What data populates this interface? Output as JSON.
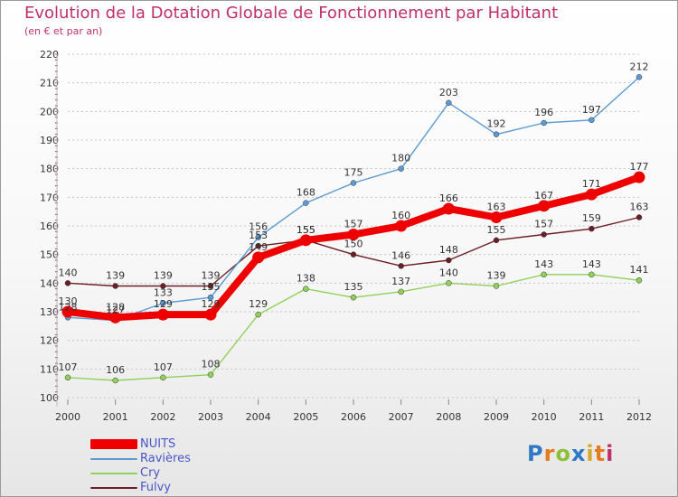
{
  "title": "Evolution de la Dotation Globale de Fonctionnement par Habitant",
  "subtitle": "(en € et par an)",
  "logo_text": "Proxiti",
  "logo_colors": [
    "#2f78c4",
    "#e67a1e",
    "#8fbf3a",
    "#2f78c4",
    "#d4a92a",
    "#e67a1e",
    "#c0306a"
  ],
  "chart_data": {
    "type": "line",
    "title": "Evolution de la Dotation Globale de Fonctionnement par Habitant",
    "subtitle": "(en € et par an)",
    "xlabel": "",
    "ylabel": "",
    "x": [
      "2000",
      "2001",
      "2002",
      "2003",
      "2004",
      "2005",
      "2006",
      "2007",
      "2008",
      "2009",
      "2010",
      "2011",
      "2012"
    ],
    "ylim": [
      100,
      220
    ],
    "yticks": [
      100,
      110,
      120,
      130,
      140,
      150,
      160,
      170,
      180,
      190,
      200,
      210,
      220
    ],
    "grid": true,
    "legend_position": "bottom-left",
    "series": [
      {
        "name": "Fulvy",
        "color": "#6b1f24",
        "values": [
          140,
          139,
          139,
          139,
          153,
          155,
          150,
          146,
          148,
          155,
          157,
          159,
          163
        ]
      },
      {
        "name": "Cry",
        "color": "#8fd15a",
        "values": [
          107,
          106,
          107,
          108,
          129,
          138,
          135,
          137,
          140,
          139,
          143,
          143,
          141
        ]
      },
      {
        "name": "Ravières",
        "color": "#5b9ad2",
        "values": [
          128,
          127,
          133,
          135,
          156,
          168,
          175,
          180,
          203,
          192,
          196,
          197,
          212
        ]
      },
      {
        "name": "NUITS",
        "color": "#ee0000",
        "values": [
          130,
          128,
          129,
          129,
          149,
          155,
          157,
          160,
          166,
          163,
          167,
          171,
          177
        ]
      }
    ]
  }
}
